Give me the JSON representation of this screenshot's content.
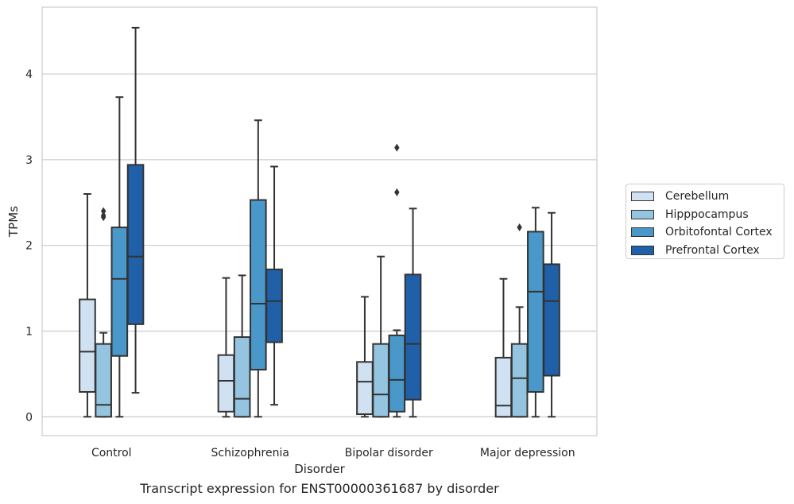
{
  "caption": "Transcript expression for ENST00000361687 by disorder",
  "colors": {
    "Cerebellum": "#d0e1f2",
    "Hipppocampus": "#94c4df",
    "Orbitofontal Cortex": "#4a98c9",
    "Prefrontal Cortex": "#2060a8",
    "grid": "#cccccc",
    "line": "#333333"
  },
  "chart_data": {
    "type": "box",
    "title": "",
    "xlabel": "Disorder",
    "ylabel": "TPMs",
    "ylim": [
      -0.22,
      4.78
    ],
    "yticks": [
      0,
      1,
      2,
      3,
      4
    ],
    "grid": true,
    "legend_position": "right",
    "categories": [
      "Control",
      "Schizophrenia",
      "Bipolar disorder",
      "Major depression"
    ],
    "series": [
      {
        "name": "Cerebellum",
        "boxes": [
          {
            "whisker_low": 0.0,
            "q1": 0.29,
            "median": 0.76,
            "q3": 1.37,
            "whisker_high": 2.6,
            "outliers": []
          },
          {
            "whisker_low": 0.0,
            "q1": 0.06,
            "median": 0.42,
            "q3": 0.72,
            "whisker_high": 1.62,
            "outliers": []
          },
          {
            "whisker_low": 0.0,
            "q1": 0.03,
            "median": 0.41,
            "q3": 0.64,
            "whisker_high": 1.4,
            "outliers": []
          },
          {
            "whisker_low": 0.0,
            "q1": 0.0,
            "median": 0.13,
            "q3": 0.69,
            "whisker_high": 1.61,
            "outliers": []
          }
        ]
      },
      {
        "name": "Hipppocampus",
        "boxes": [
          {
            "whisker_low": 0.0,
            "q1": 0.0,
            "median": 0.14,
            "q3": 0.85,
            "whisker_high": 0.98,
            "outliers": [
              2.33,
              2.35,
              2.4
            ]
          },
          {
            "whisker_low": 0.0,
            "q1": 0.0,
            "median": 0.21,
            "q3": 0.93,
            "whisker_high": 1.65,
            "outliers": []
          },
          {
            "whisker_low": 0.0,
            "q1": 0.0,
            "median": 0.26,
            "q3": 0.85,
            "whisker_high": 1.87,
            "outliers": []
          },
          {
            "whisker_low": 0.0,
            "q1": 0.0,
            "median": 0.45,
            "q3": 0.85,
            "whisker_high": 1.28,
            "outliers": [
              2.21
            ]
          }
        ]
      },
      {
        "name": "Orbitofontal Cortex",
        "boxes": [
          {
            "whisker_low": 0.0,
            "q1": 0.71,
            "median": 1.61,
            "q3": 2.21,
            "whisker_high": 3.73,
            "outliers": []
          },
          {
            "whisker_low": 0.0,
            "q1": 0.55,
            "median": 1.32,
            "q3": 2.53,
            "whisker_high": 3.46,
            "outliers": []
          },
          {
            "whisker_low": 0.0,
            "q1": 0.06,
            "median": 0.43,
            "q3": 0.95,
            "whisker_high": 1.01,
            "outliers": [
              2.62,
              3.14
            ]
          },
          {
            "whisker_low": 0.0,
            "q1": 0.29,
            "median": 1.46,
            "q3": 2.16,
            "whisker_high": 2.44,
            "outliers": []
          }
        ]
      },
      {
        "name": "Prefrontal Cortex",
        "boxes": [
          {
            "whisker_low": 0.28,
            "q1": 1.08,
            "median": 1.87,
            "q3": 2.94,
            "whisker_high": 4.54,
            "outliers": []
          },
          {
            "whisker_low": 0.14,
            "q1": 0.87,
            "median": 1.35,
            "q3": 1.72,
            "whisker_high": 2.92,
            "outliers": []
          },
          {
            "whisker_low": 0.0,
            "q1": 0.2,
            "median": 0.85,
            "q3": 1.66,
            "whisker_high": 2.43,
            "outliers": []
          },
          {
            "whisker_low": 0.0,
            "q1": 0.48,
            "median": 1.35,
            "q3": 1.78,
            "whisker_high": 2.38,
            "outliers": []
          }
        ]
      }
    ]
  }
}
